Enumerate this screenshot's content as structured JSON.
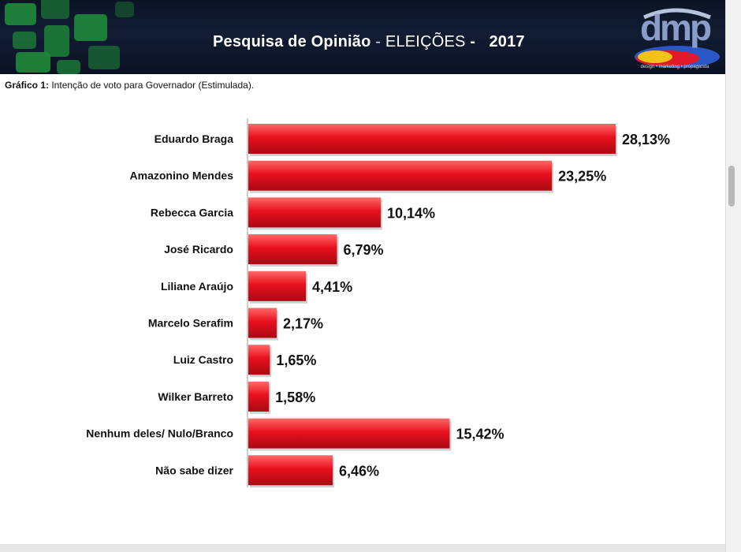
{
  "header": {
    "title_main": "Pesquisa de Opinião",
    "title_dash": " - ",
    "title_sub": "ELEIÇÕES",
    "title_dash2": " -   ",
    "title_year": "2017",
    "logo_text": "dmp",
    "logo_tagline": "design • marketing • propaganda"
  },
  "caption": {
    "label": "Gráfico 1:",
    "text": " Intenção de voto para Governador (Estimulada)."
  },
  "colors": {
    "bar": "#e8101e",
    "bar_dark": "#a80a14",
    "bar_light": "#ff6a6a",
    "banner": "#0f1a2e",
    "tiles": "#1e8a3a"
  },
  "chart_data": {
    "type": "bar",
    "orientation": "horizontal",
    "categories": [
      "Eduardo Braga",
      "Amazonino Mendes",
      "Rebecca Garcia",
      "José Ricardo",
      "Liliane Araújo",
      "Marcelo Serafim",
      "Luiz Castro",
      "Wilker Barreto",
      "Nenhum deles/ Nulo/Branco",
      "Não sabe dizer"
    ],
    "values": [
      28.13,
      23.25,
      10.14,
      6.79,
      4.41,
      2.17,
      1.65,
      1.58,
      15.42,
      6.46
    ],
    "value_labels": [
      "28,13%",
      "23,25%",
      "10,14%",
      "6,79%",
      "4,41%",
      "2,17%",
      "1,65%",
      "1,58%",
      "15,42%",
      "6,46%"
    ],
    "title": "",
    "xlabel": "",
    "ylabel": "",
    "xlim": [
      0,
      28.13
    ],
    "grid": false,
    "legend": "none"
  }
}
